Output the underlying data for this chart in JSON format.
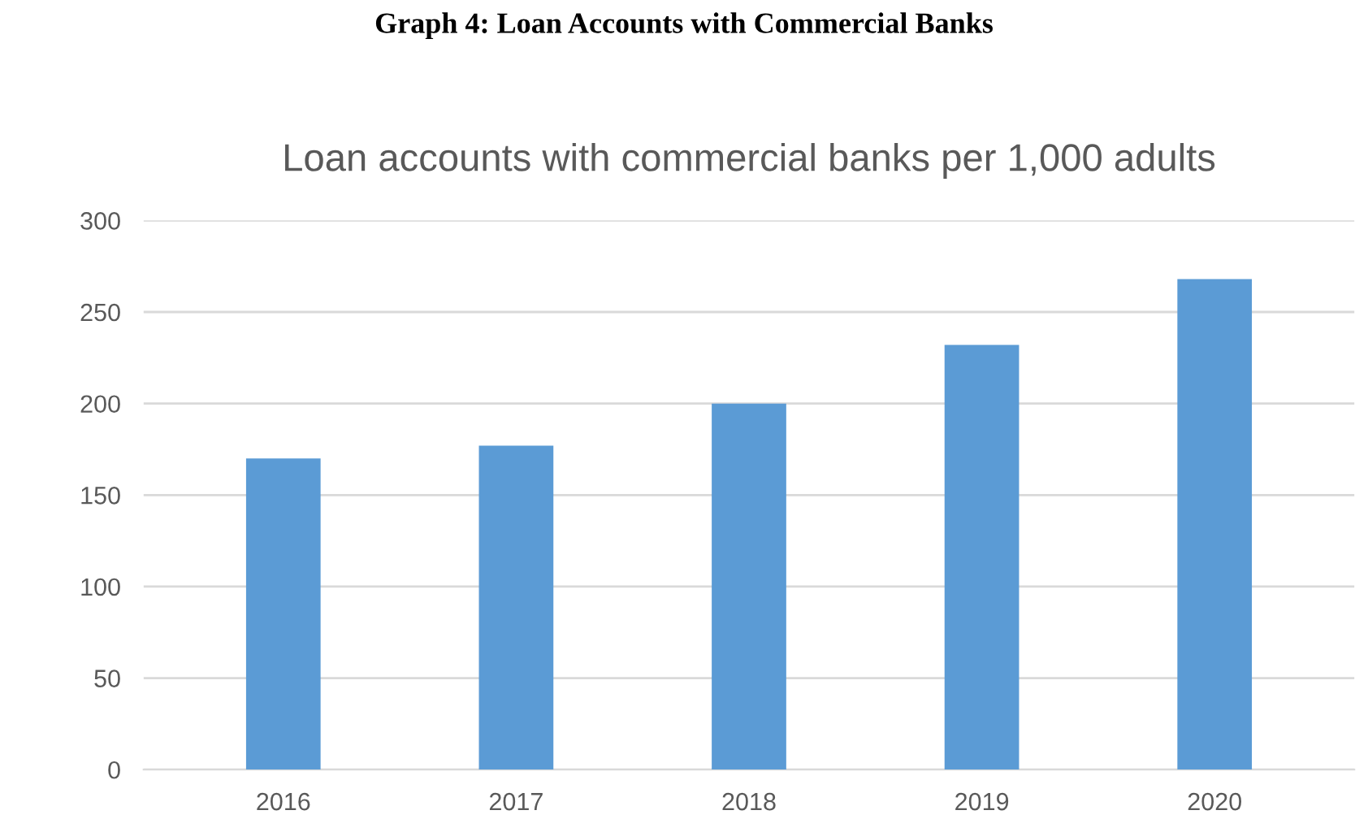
{
  "chart_data": {
    "type": "bar",
    "title": "Loan accounts with commercial banks per 1,000 adults",
    "annotations": [
      "Graph 4: Loan Accounts with Commercial Banks"
    ],
    "categories": [
      "2016",
      "2017",
      "2018",
      "2019",
      "2020"
    ],
    "values": [
      170,
      177,
      200,
      232,
      268
    ],
    "color": "#5b9bd5",
    "ylim": [
      0,
      300
    ],
    "yticks": [
      0,
      50,
      100,
      150,
      200,
      250,
      300
    ],
    "grid": "y"
  }
}
